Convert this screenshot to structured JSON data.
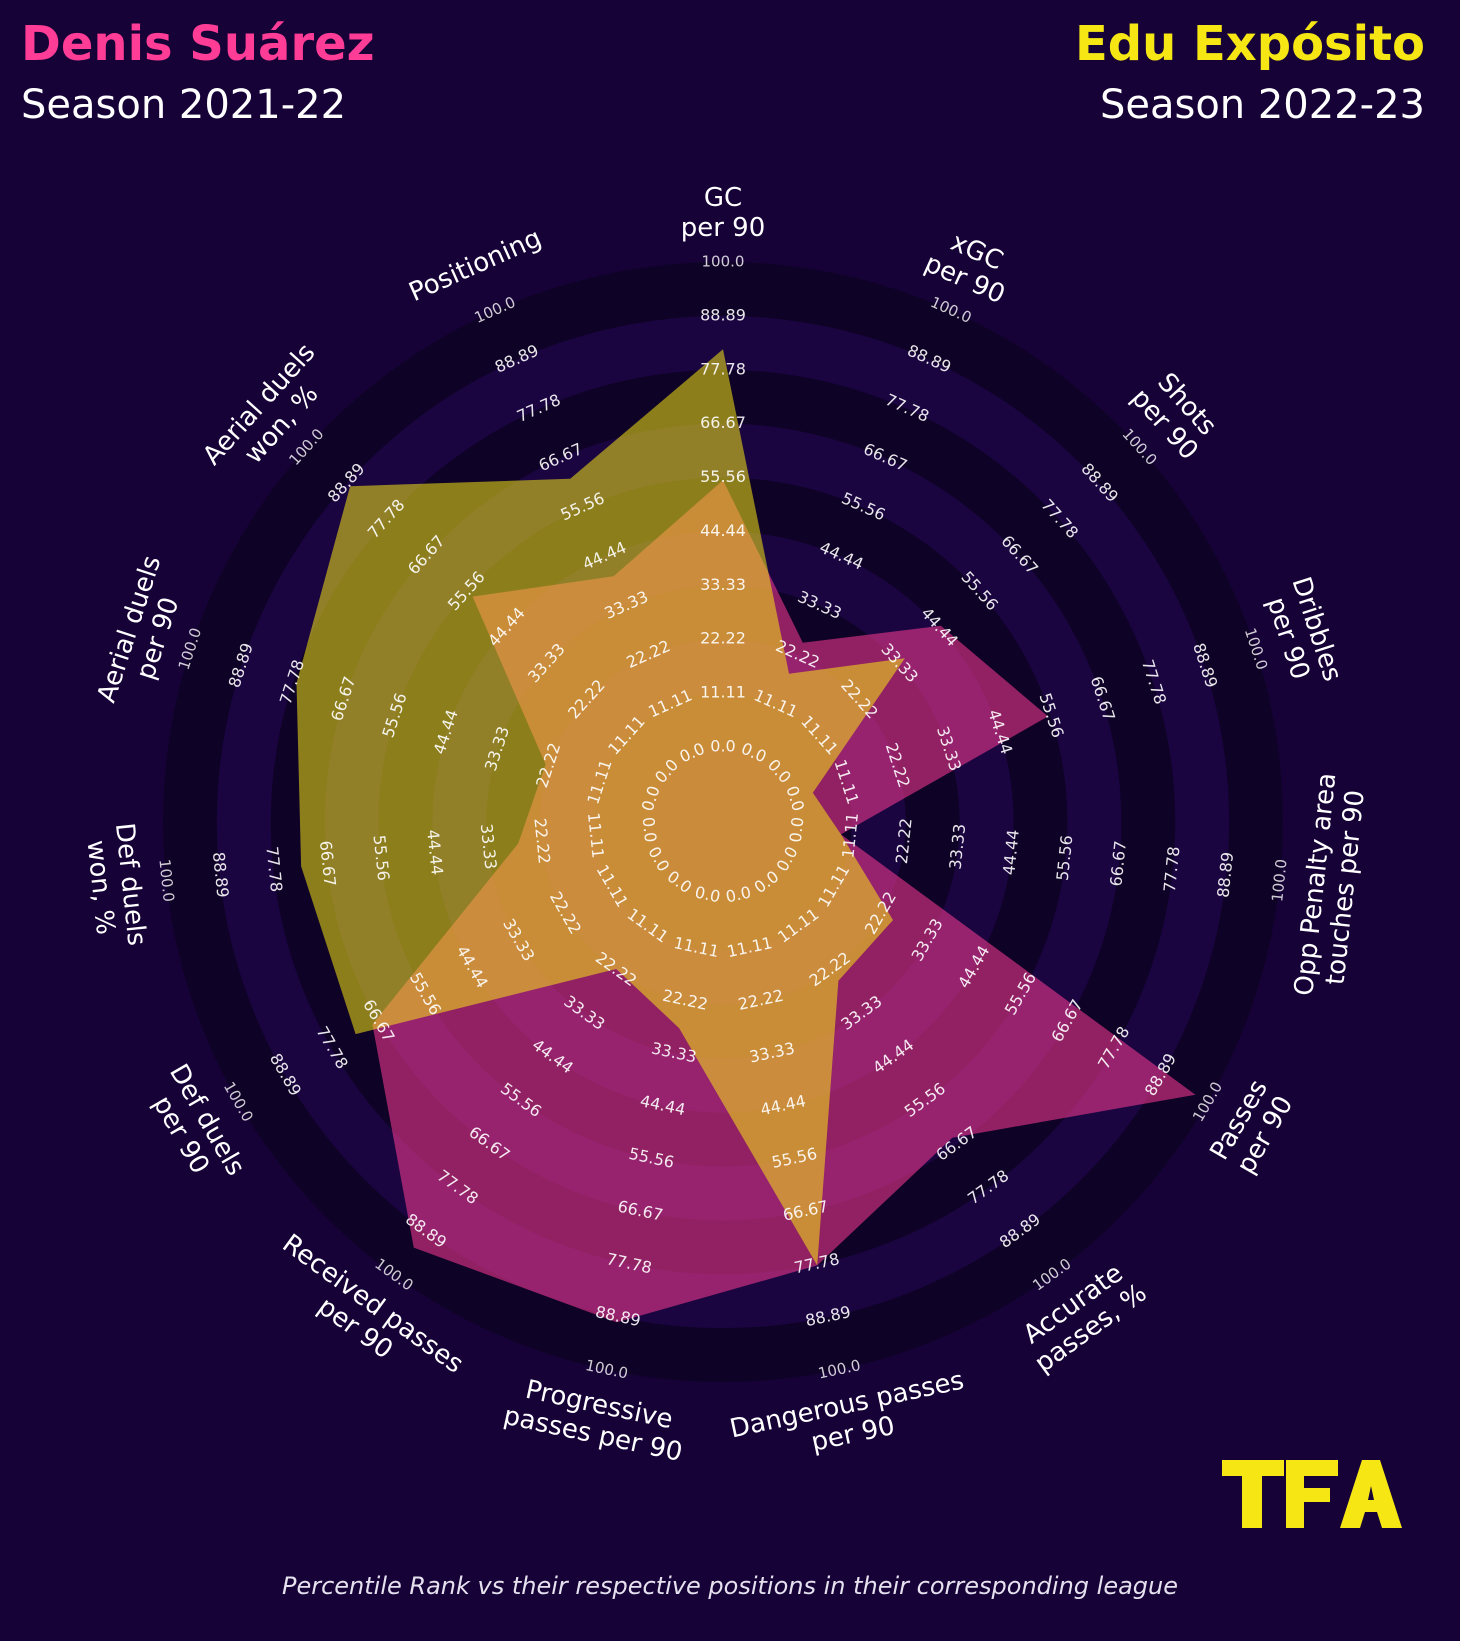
{
  "players": [
    {
      "name": "Denis Suárez",
      "season": "Season 2021-22",
      "color": "#ff3c96"
    },
    {
      "name": "Edu Expósito",
      "season": "Season 2022-23",
      "color": "#f5e614"
    }
  ],
  "footnote": "Percentile Rank vs their respective positions in their corresponding league",
  "logo_text": "TFA",
  "chart_data": {
    "type": "radar",
    "scale": [
      0,
      100
    ],
    "ring_labels": [
      "0.0",
      "11.11",
      "22.22",
      "33.33",
      "44.44",
      "55.56",
      "66.67",
      "77.78",
      "88.89",
      "100.0"
    ],
    "parameters": [
      [
        "GC",
        "per 90"
      ],
      [
        "xGC",
        "per 90"
      ],
      [
        "Shots",
        "per 90"
      ],
      [
        "Dribbles",
        "per 90"
      ],
      [
        "Opp Penalty area",
        "touches per 90"
      ],
      [
        "Passes",
        "per 90"
      ],
      [
        "Accurate",
        "passes, %"
      ],
      [
        "Dangerous passes",
        "per 90"
      ],
      [
        "Progressive",
        "passes per 90"
      ],
      [
        "Received passes",
        "per 90"
      ],
      [
        "Def duels",
        "per 90"
      ],
      [
        "Def duels",
        "won, %"
      ],
      [
        "Aerial duels",
        "per 90"
      ],
      [
        "Aerial duels",
        "won, %"
      ],
      [
        "Positioning"
      ]
    ],
    "series": [
      {
        "name": "Denis Suárez",
        "color": "#ff3c96",
        "values": [
          55,
          25,
          45,
          55,
          9,
          97,
          65,
          78,
          90,
          93,
          68,
          27,
          23,
          54,
          40
        ]
      },
      {
        "name": "Edu Expósito",
        "color": "#f5e614",
        "values": [
          82,
          18,
          35,
          4,
          9,
          25,
          25,
          78,
          28,
          22,
          72,
          72,
          77,
          88,
          62
        ]
      }
    ]
  }
}
